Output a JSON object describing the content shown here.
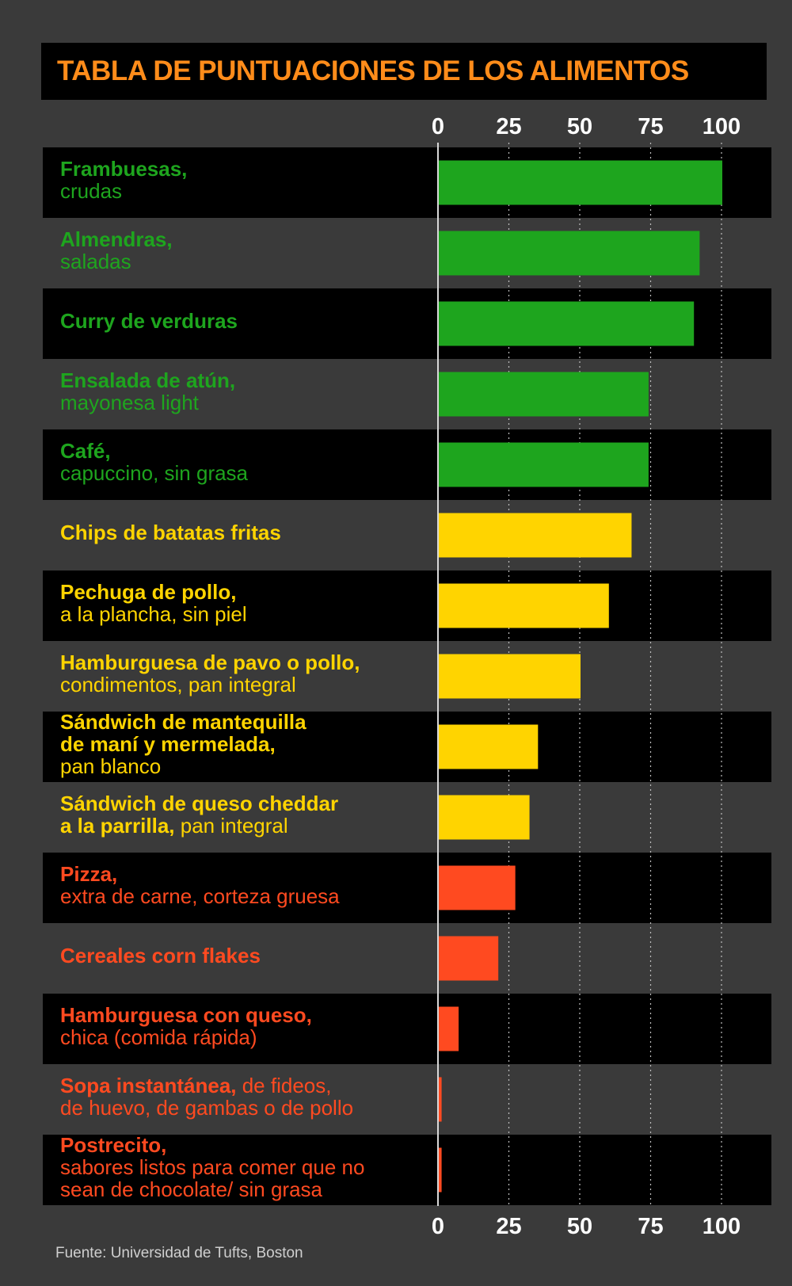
{
  "title": "TABLA DE PUNTUACIONES DE LOS ALIMENTOS",
  "source": "Fuente: Universidad de Tufts, Boston",
  "colors": {
    "green": "#1ea51e",
    "yellow": "#ffd400",
    "red": "#ff4a20",
    "title": "#ff8c1a",
    "band": "#000000",
    "background": "#3a3a3a"
  },
  "chart_data": {
    "type": "bar",
    "orientation": "horizontal",
    "title": "TABLA DE PUNTUACIONES DE LOS ALIMENTOS",
    "xlim": [
      0,
      100
    ],
    "xticks": [
      "0",
      "25",
      "50",
      "75",
      "100"
    ],
    "grid": true,
    "categories": [
      {
        "main": "Frambuesas,",
        "sub": "crudas",
        "value": 100,
        "color": "green"
      },
      {
        "main": "Almendras,",
        "sub": "saladas",
        "value": 92,
        "color": "green"
      },
      {
        "main": "Curry de verduras",
        "sub": "",
        "value": 90,
        "color": "green"
      },
      {
        "main": "Ensalada de atún,",
        "sub": "mayonesa light",
        "value": 74,
        "color": "green"
      },
      {
        "main": "Café,",
        "sub": "capuccino, sin grasa",
        "value": 74,
        "color": "green"
      },
      {
        "main": "Chips de batatas fritas",
        "sub": "",
        "value": 68,
        "color": "yellow"
      },
      {
        "main": "Pechuga de pollo,",
        "sub": "a la plancha, sin piel",
        "value": 60,
        "color": "yellow"
      },
      {
        "main": "Hamburguesa de pavo o pollo,",
        "sub": "condimentos, pan integral",
        "value": 50,
        "color": "yellow"
      },
      {
        "main": "Sándwich de mantequilla\nde maní y mermelada,",
        "sub": "pan blanco",
        "value": 35,
        "color": "yellow"
      },
      {
        "main": "Sándwich de queso cheddar\na la parrilla,",
        "sub": " pan integral",
        "value": 32,
        "color": "yellow",
        "inline_sub": true
      },
      {
        "main": "Pizza,",
        "sub": "extra de carne, corteza gruesa",
        "value": 27,
        "color": "red"
      },
      {
        "main": "Cereales corn flakes",
        "sub": "",
        "value": 21,
        "color": "red"
      },
      {
        "main": "Hamburguesa con queso,",
        "sub": "chica (comida rápida)",
        "value": 7,
        "color": "red"
      },
      {
        "main": "Sopa instantánea,",
        "sub": " de fideos,\nde huevo, de gambas o de pollo",
        "value": 1,
        "color": "red",
        "inline_sub": true
      },
      {
        "main": "Postrecito,",
        "sub": "sabores listos para comer que no\nsean de chocolate/ sin grasa",
        "value": 1,
        "color": "red"
      }
    ]
  }
}
